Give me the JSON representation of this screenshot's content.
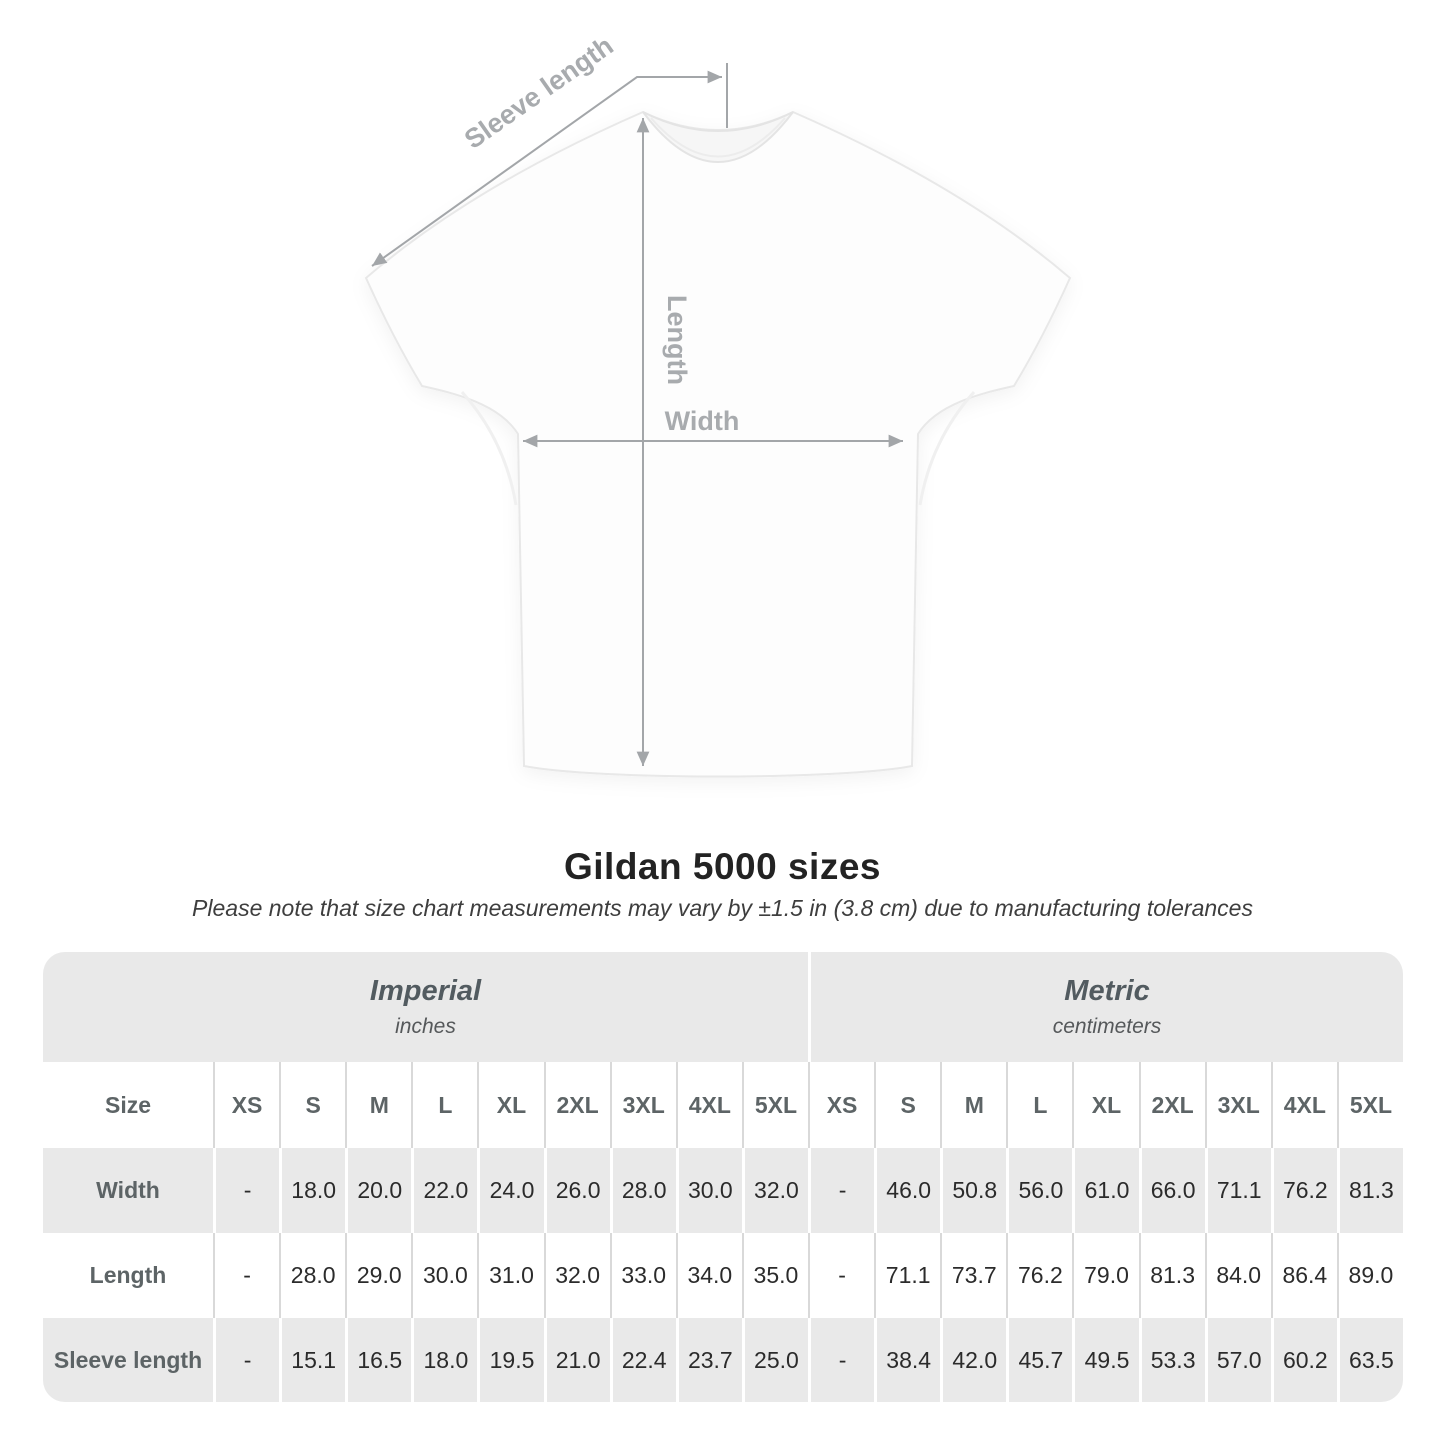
{
  "diagram": {
    "labels": {
      "sleeve_length": "Sleeve length",
      "length": "Length",
      "width": "Width"
    }
  },
  "title": "Gildan 5000 sizes",
  "subtitle": "Please note that size chart measurements may vary by ±1.5 in (3.8 cm) due to manufacturing tolerances",
  "table": {
    "sections": [
      {
        "label": "Imperial",
        "sub": "inches"
      },
      {
        "label": "Metric",
        "sub": "centimeters"
      }
    ],
    "size_header": "Size",
    "columns": [
      "XS",
      "S",
      "M",
      "L",
      "XL",
      "2XL",
      "3XL",
      "4XL",
      "5XL",
      "XS",
      "S",
      "M",
      "L",
      "XL",
      "2XL",
      "3XL",
      "4XL",
      "5XL"
    ],
    "rows": [
      {
        "label": "Width",
        "values": [
          "-",
          "18.0",
          "20.0",
          "22.0",
          "24.0",
          "26.0",
          "28.0",
          "30.0",
          "32.0",
          "-",
          "46.0",
          "50.8",
          "56.0",
          "61.0",
          "66.0",
          "71.1",
          "76.2",
          "81.3"
        ]
      },
      {
        "label": "Length",
        "values": [
          "-",
          "28.0",
          "29.0",
          "30.0",
          "31.0",
          "32.0",
          "33.0",
          "34.0",
          "35.0",
          "-",
          "71.1",
          "73.7",
          "76.2",
          "79.0",
          "81.3",
          "84.0",
          "86.4",
          "89.0"
        ]
      },
      {
        "label": "Sleeve length",
        "values": [
          "-",
          "15.1",
          "16.5",
          "18.0",
          "19.5",
          "21.0",
          "22.4",
          "23.7",
          "25.0",
          "-",
          "38.4",
          "42.0",
          "45.7",
          "49.5",
          "53.3",
          "57.0",
          "60.2",
          "63.5"
        ]
      }
    ]
  },
  "colors": {
    "table_band_gray": "#e9e9e9",
    "annotation_line": "#a3a6a9",
    "annotation_label": "#a8abae",
    "value_text": "#2b2b2b",
    "header_text": "#5d6466"
  },
  "chart_data": {
    "type": "table",
    "title": "Gildan 5000 sizes",
    "note": "Please note that size chart measurements may vary by ±1.5 in (3.8 cm) due to manufacturing tolerances",
    "unit_groups": [
      {
        "name": "Imperial",
        "unit": "inches",
        "sizes": [
          "XS",
          "S",
          "M",
          "L",
          "XL",
          "2XL",
          "3XL",
          "4XL",
          "5XL"
        ]
      },
      {
        "name": "Metric",
        "unit": "centimeters",
        "sizes": [
          "XS",
          "S",
          "M",
          "L",
          "XL",
          "2XL",
          "3XL",
          "4XL",
          "5XL"
        ]
      }
    ],
    "measurements": [
      {
        "name": "Width",
        "imperial": [
          null,
          18.0,
          20.0,
          22.0,
          24.0,
          26.0,
          28.0,
          30.0,
          32.0
        ],
        "metric": [
          null,
          46.0,
          50.8,
          56.0,
          61.0,
          66.0,
          71.1,
          76.2,
          81.3
        ]
      },
      {
        "name": "Length",
        "imperial": [
          null,
          28.0,
          29.0,
          30.0,
          31.0,
          32.0,
          33.0,
          34.0,
          35.0
        ],
        "metric": [
          null,
          71.1,
          73.7,
          76.2,
          79.0,
          81.3,
          84.0,
          86.4,
          89.0
        ]
      },
      {
        "name": "Sleeve length",
        "imperial": [
          null,
          15.1,
          16.5,
          18.0,
          19.5,
          21.0,
          22.4,
          23.7,
          25.0
        ],
        "metric": [
          null,
          38.4,
          42.0,
          45.7,
          49.5,
          53.3,
          57.0,
          60.2,
          63.5
        ]
      }
    ]
  }
}
